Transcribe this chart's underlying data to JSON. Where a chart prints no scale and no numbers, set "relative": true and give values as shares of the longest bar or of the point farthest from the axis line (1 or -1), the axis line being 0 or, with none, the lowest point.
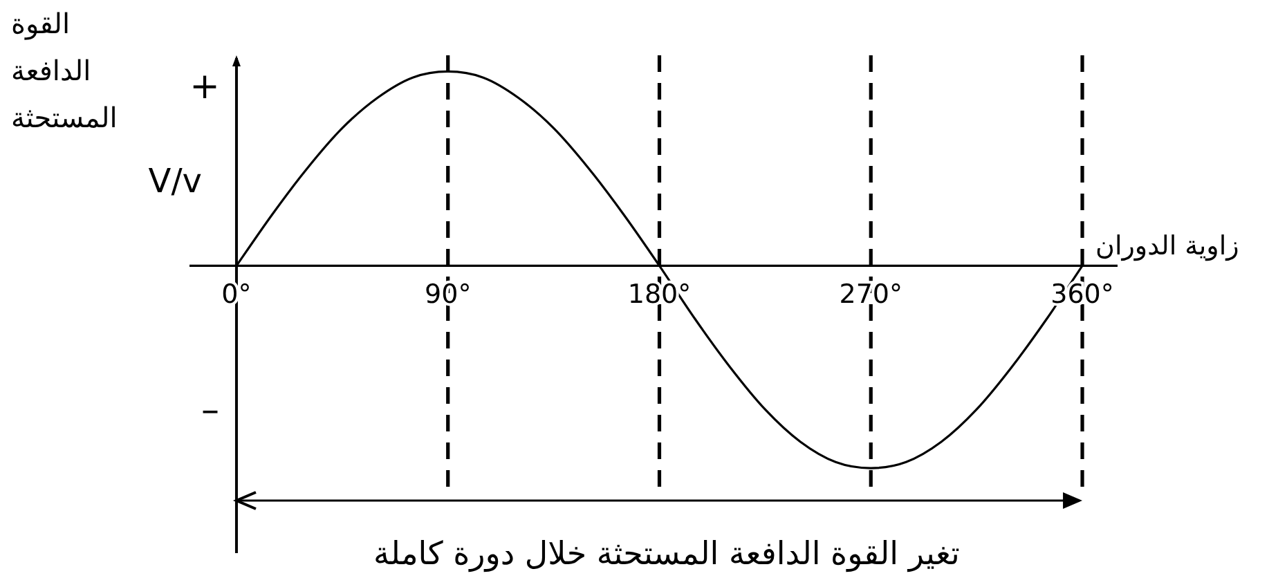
{
  "chart_data": {
    "type": "line",
    "relative": true,
    "ylabel": "القوة الدافعة المستحثة",
    "xlabel": "زاوية الدوران",
    "annotations": [
      "+",
      "–",
      "V/v",
      "تغير القوة الدافعة المستحثة خلال دورة كاملة"
    ],
    "xlim": [
      -20,
      375
    ],
    "xticks": [
      {
        "value": 0,
        "label": "0°"
      },
      {
        "value": 90,
        "label": "90°"
      },
      {
        "value": 180,
        "label": "180°"
      },
      {
        "value": 270,
        "label": "270°"
      },
      {
        "value": 360,
        "label": "360°"
      }
    ],
    "marker": "none",
    "line_style": "solid",
    "x": [
      0,
      15,
      30,
      45,
      60,
      75,
      90,
      105,
      120,
      135,
      150,
      165,
      180,
      195,
      210,
      225,
      240,
      255,
      270,
      285,
      300,
      315,
      330,
      345,
      360
    ],
    "series": [
      {
        "color": "#000000",
        "values": [
          0,
          0.25,
          0.48,
          0.68,
          0.83,
          0.93,
          0.96,
          0.93,
          0.83,
          0.68,
          0.48,
          0.25,
          0,
          -0.26,
          -0.5,
          -0.71,
          -0.87,
          -0.97,
          -1,
          -0.97,
          -0.87,
          -0.71,
          -0.5,
          -0.26,
          0
        ]
      }
    ],
    "ref_lines": [
      {
        "axis": "x",
        "value": 90,
        "color": "#000000",
        "line_style": "dashed"
      },
      {
        "axis": "x",
        "value": 180,
        "color": "#000000",
        "line_style": "dashed"
      },
      {
        "axis": "x",
        "value": 270,
        "color": "#000000",
        "line_style": "dashed"
      },
      {
        "axis": "x",
        "value": 360,
        "color": "#000000",
        "line_style": "dashed"
      }
    ]
  }
}
